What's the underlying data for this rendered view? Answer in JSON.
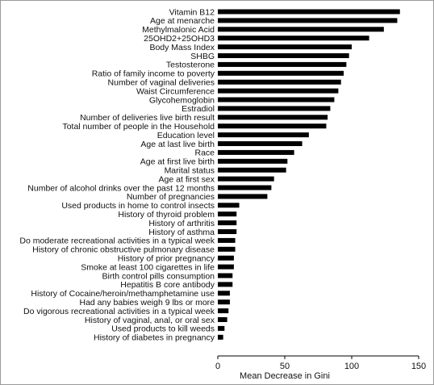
{
  "chart_data": {
    "type": "bar",
    "orientation": "horizontal",
    "title": "",
    "xlabel": "Mean Decrease in Gini",
    "ylabel": "",
    "xlim": [
      0,
      150
    ],
    "xticks": [
      0,
      50,
      100,
      150
    ],
    "grid": false,
    "bar_color": "#000000",
    "categories": [
      "Vitamin B12",
      "Age at menarche",
      "Methylmalonic Acid",
      "25OHD2+25OHD3",
      "Body Mass Index",
      "SHBG",
      "Testosterone",
      "Ratio of family income to poverty",
      "Number of vaginal deliveries",
      "Waist Circumference",
      "Glycohemoglobin",
      "Estradiol",
      "Number of deliveries live birth result",
      "Total number of people in the Household",
      "Education level",
      "Age at last live birth",
      "Race",
      "Age at first live birth",
      "Marital status",
      "Age at first sex",
      "Number of alcohol drinks over the past 12 months",
      "Number of pregnancies",
      "Used products in home to control insects",
      "History of thyroid problem",
      "History of arthritis",
      "History of asthma",
      "Do moderate recreational activities in a typical week",
      "History of chronic obstructive pulmonary disease",
      "History of prior pregnancy",
      "Smoke at least 100 cigarettes in life",
      "Birth control pills consumption",
      "Hepatitis B core antibody",
      "History of Cocaine/heroin/methamphetamine use",
      "Had any babies weigh 9 lbs or more",
      "Do vigorous recreational activities in a typical week",
      "History of vaginal, anal, or oral sex",
      "Used products to kill weeds",
      "History of diabetes in pregnancy"
    ],
    "values": [
      136,
      134,
      124,
      113,
      100,
      98,
      96,
      94,
      92,
      90,
      87,
      84,
      82,
      81,
      68,
      63,
      57,
      52,
      51,
      42,
      40,
      37,
      16,
      14,
      14,
      14,
      13,
      13,
      12,
      12,
      11,
      11,
      9,
      9,
      8,
      7,
      5,
      4
    ]
  }
}
